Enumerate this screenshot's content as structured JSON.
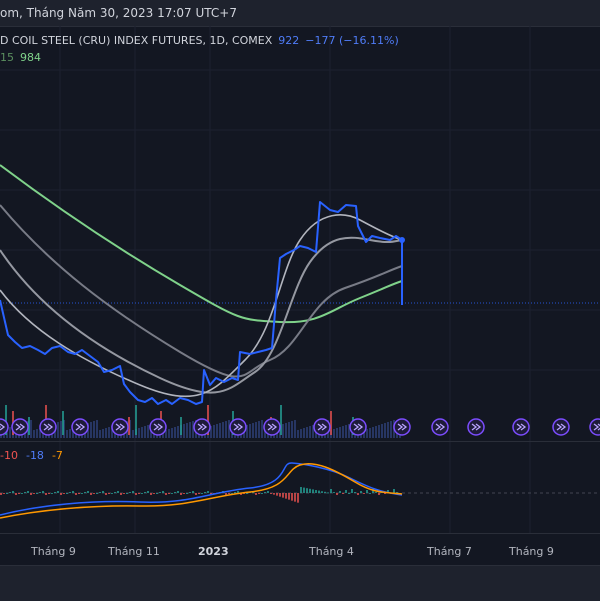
{
  "header": {
    "datetime_text": "om, Tháng Năm 30, 2023 17:07 UTC+7"
  },
  "legend": {
    "symbol": "D COIL STEEL (CRU) INDEX FUTURES, 1D, COMEX",
    "price": "922",
    "change": "−177 (−16.11%)",
    "ma_prefix": "15",
    "ma_value": "984"
  },
  "macd": {
    "v1": "-10",
    "v2": "-18",
    "v3": "-7"
  },
  "xaxis": {
    "labels": [
      "Tháng 9",
      "Tháng 11",
      "2023",
      "Tháng 4",
      "Tháng 7",
      "Tháng 9"
    ]
  },
  "colors": {
    "background": "#131722",
    "price_line": "#2962ff",
    "ma_green": "#7fd28a",
    "ma_gray": "#9598a1",
    "macd_orange": "#ff9800",
    "macd_blue": "#2962ff",
    "marker_purple": "#7c4dff"
  },
  "icons": {
    "event_marker": "fast-forward-arrow-icon"
  }
}
